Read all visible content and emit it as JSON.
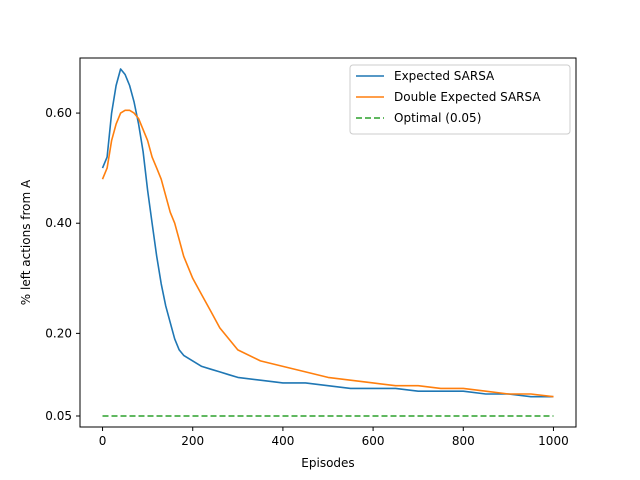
{
  "chart_data": {
    "type": "line",
    "title": "",
    "xlabel": "Episodes",
    "ylabel": "% left actions from A",
    "xlim": [
      -50,
      1050
    ],
    "ylim": [
      0.03,
      0.7
    ],
    "xticks": [
      0,
      200,
      400,
      600,
      800,
      1000
    ],
    "xtick_labels": [
      "0",
      "200",
      "400",
      "600",
      "800",
      "1000"
    ],
    "yticks": [
      0.05,
      0.2,
      0.4,
      0.6
    ],
    "ytick_labels": [
      "0.05",
      "0.20",
      "0.40",
      "0.60"
    ],
    "grid": false,
    "legend_position": "top-right",
    "series": [
      {
        "name": "Expected SARSA",
        "color": "#1f77b4",
        "style": "solid",
        "x": [
          0,
          10,
          20,
          30,
          40,
          50,
          60,
          70,
          80,
          90,
          100,
          110,
          120,
          130,
          140,
          150,
          160,
          170,
          180,
          190,
          200,
          220,
          240,
          260,
          280,
          300,
          350,
          400,
          450,
          500,
          550,
          600,
          650,
          700,
          750,
          800,
          850,
          900,
          950,
          1000
        ],
        "values": [
          0.5,
          0.52,
          0.6,
          0.65,
          0.68,
          0.67,
          0.65,
          0.62,
          0.58,
          0.53,
          0.46,
          0.4,
          0.34,
          0.29,
          0.25,
          0.22,
          0.19,
          0.17,
          0.16,
          0.155,
          0.15,
          0.14,
          0.135,
          0.13,
          0.125,
          0.12,
          0.115,
          0.11,
          0.11,
          0.105,
          0.1,
          0.1,
          0.1,
          0.095,
          0.095,
          0.095,
          0.09,
          0.09,
          0.085,
          0.085
        ]
      },
      {
        "name": "Double Expected SARSA",
        "color": "#ff7f0e",
        "style": "solid",
        "x": [
          0,
          10,
          20,
          30,
          40,
          50,
          60,
          70,
          80,
          90,
          100,
          110,
          120,
          130,
          140,
          150,
          160,
          170,
          180,
          190,
          200,
          220,
          240,
          260,
          280,
          300,
          350,
          400,
          450,
          500,
          550,
          600,
          650,
          700,
          750,
          800,
          850,
          900,
          950,
          1000
        ],
        "values": [
          0.48,
          0.5,
          0.55,
          0.58,
          0.6,
          0.605,
          0.605,
          0.6,
          0.59,
          0.57,
          0.55,
          0.52,
          0.5,
          0.48,
          0.45,
          0.42,
          0.4,
          0.37,
          0.34,
          0.32,
          0.3,
          0.27,
          0.24,
          0.21,
          0.19,
          0.17,
          0.15,
          0.14,
          0.13,
          0.12,
          0.115,
          0.11,
          0.105,
          0.105,
          0.1,
          0.1,
          0.095,
          0.09,
          0.09,
          0.085
        ]
      },
      {
        "name": "Optimal (0.05)",
        "color": "#2ca02c",
        "style": "dashed",
        "x": [
          0,
          1000
        ],
        "values": [
          0.05,
          0.05
        ]
      }
    ]
  }
}
